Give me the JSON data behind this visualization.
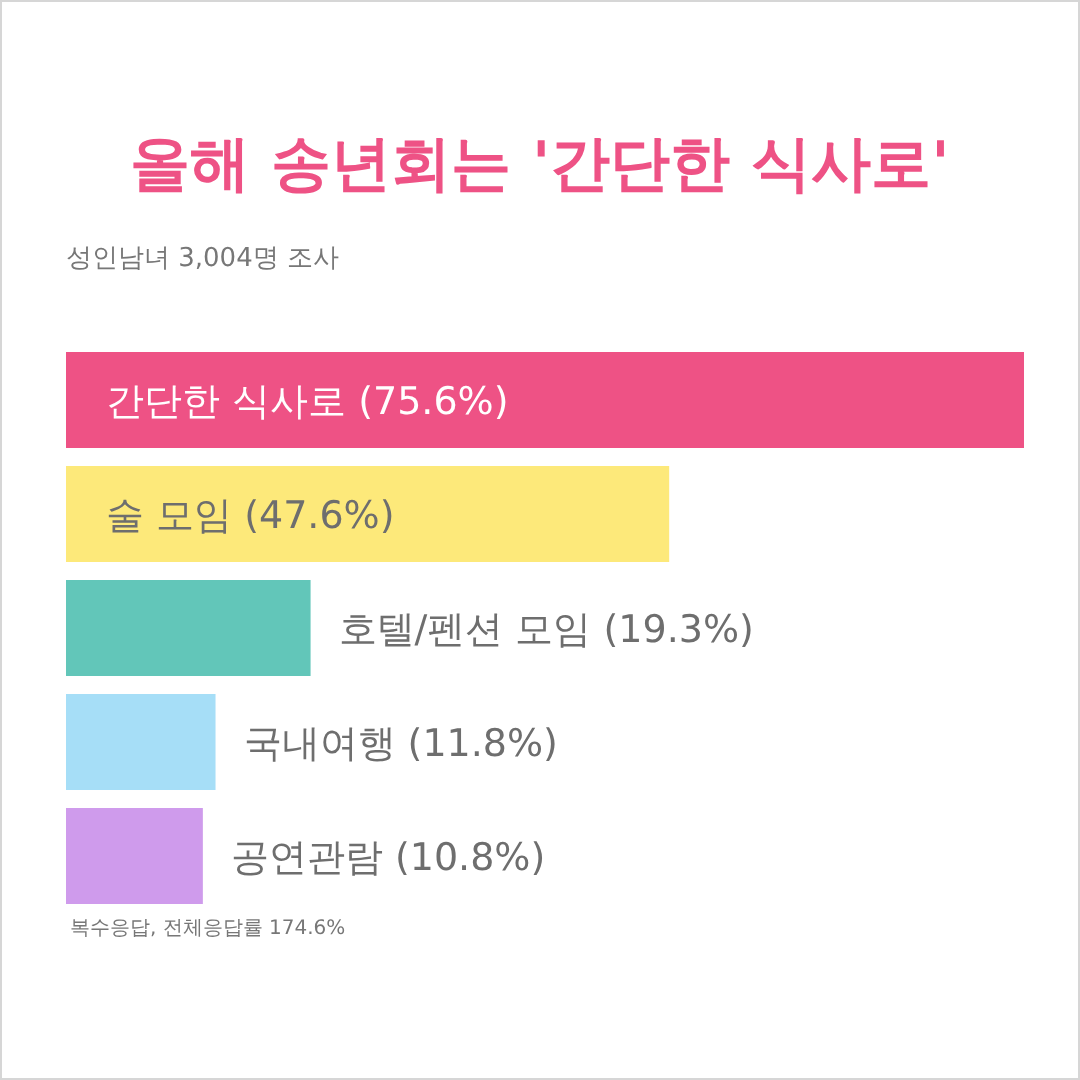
{
  "chart_data": {
    "type": "bar",
    "orientation": "horizontal",
    "title": "올해 송년회는 '간단한 식사로'",
    "subtitle": "성인남녀 3,004명 조사",
    "categories": [
      null,
      null,
      null,
      null,
      null
    ],
    "values": [
      75.6,
      47.6,
      19.3,
      11.8,
      10.8
    ],
    "value_labels": [
      "간단한 식사로 (75.6%)",
      "술 모임 (47.6%)",
      "호텔/펜션 모임 (19.3%)",
      "국내여행 (11.8%)",
      "공연관람 (10.8%)"
    ],
    "colors": [
      "#ee5285",
      "#fde97a",
      "#62c6b9",
      "#a6def7",
      "#cf9bec"
    ],
    "annotations": [
      "복수응답, 전체응답률 174.6%"
    ]
  }
}
